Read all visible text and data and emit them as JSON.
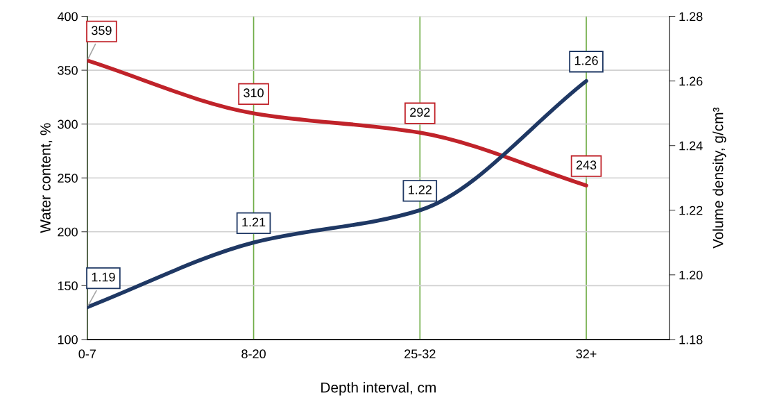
{
  "chart_data": {
    "type": "line",
    "xlabel": "Depth interval, cm",
    "ylabel": "Water content, %",
    "y2label": "Volume density, g/cm³",
    "categories": [
      "0-7",
      "8-20",
      "25-32",
      "32+"
    ],
    "series": [
      {
        "color": "#c0232a",
        "values": [
          359,
          310,
          292,
          243
        ]
      },
      {
        "color": "#1f3864",
        "values": [
          1.19,
          1.21,
          1.22,
          1.26
        ],
        "axis": "y2"
      }
    ],
    "ylim": [
      100,
      400
    ],
    "yticks": [
      100,
      150,
      200,
      250,
      300,
      350,
      400
    ],
    "y2lim": [
      1.18,
      1.28
    ],
    "y2ticks": [
      {
        "value": 1.18,
        "label": "1.18"
      },
      {
        "value": 1.2,
        "label": "1.20"
      },
      {
        "value": 1.22,
        "label": "1.22"
      },
      {
        "value": 1.24,
        "label": "1.24"
      },
      {
        "value": 1.26,
        "label": "1.26"
      },
      {
        "value": 1.28,
        "label": "1.28"
      }
    ],
    "grid": true,
    "data_labels": true,
    "marker": "none",
    "line_style": "solid"
  }
}
